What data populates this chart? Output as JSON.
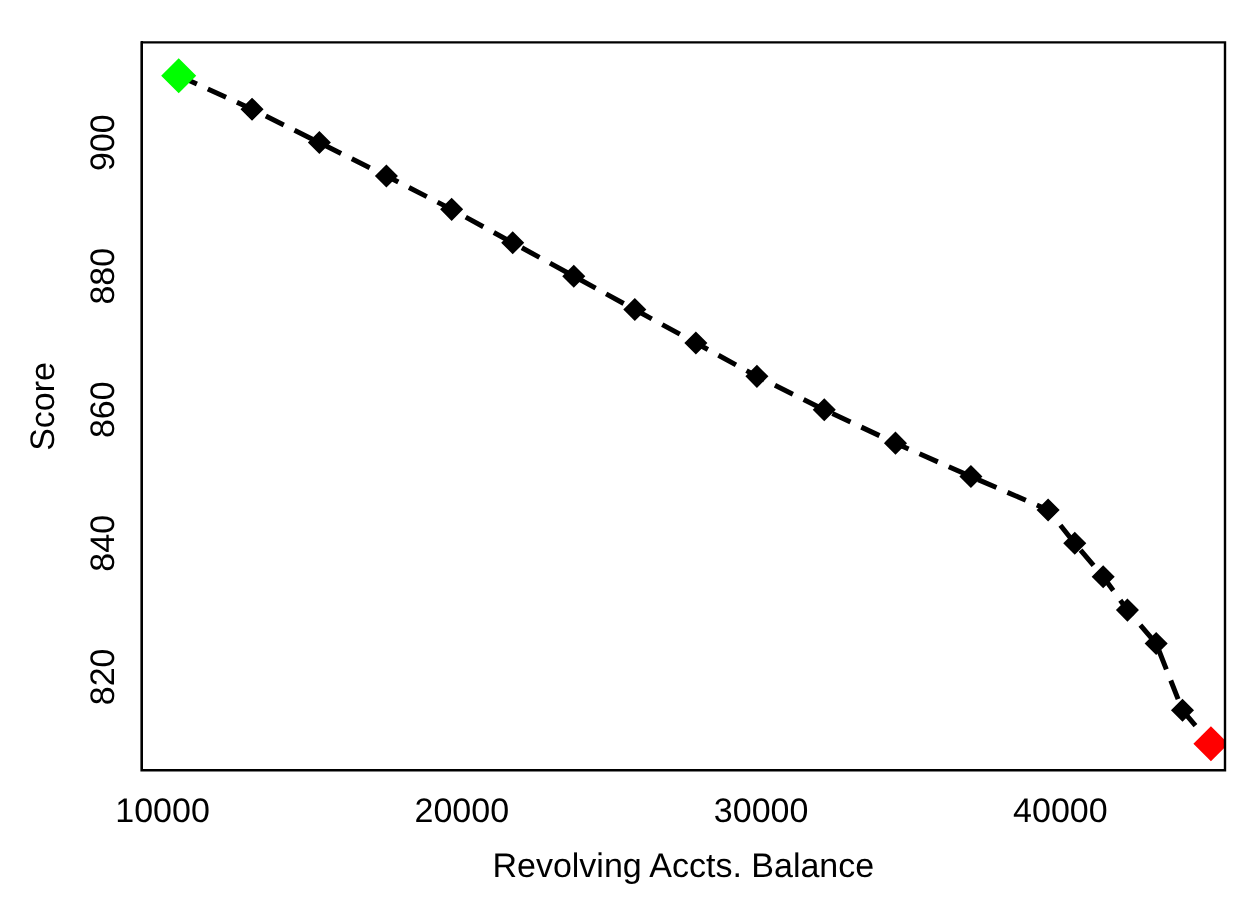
{
  "chart_data": {
    "type": "line",
    "xlabel": "Revolving Accts. Balance",
    "ylabel": "Score",
    "x": [
      10540,
      12990,
      15240,
      17480,
      19660,
      21700,
      23740,
      25780,
      27820,
      29860,
      32110,
      34490,
      37010,
      39590,
      40480,
      41430,
      42240,
      43200,
      44080,
      45030
    ],
    "series": [
      {
        "color": "#000000",
        "colors": [
          "#00ff00",
          "#000000",
          "#000000",
          "#000000",
          "#000000",
          "#000000",
          "#000000",
          "#000000",
          "#000000",
          "#000000",
          "#000000",
          "#000000",
          "#000000",
          "#000000",
          "#000000",
          "#000000",
          "#000000",
          "#000000",
          "#000000",
          "#ff0000"
        ],
        "values": [
          910,
          905,
          900,
          895,
          890,
          885,
          880,
          875,
          870,
          865,
          860,
          855,
          850,
          845,
          840,
          835,
          830,
          825,
          815,
          810
        ]
      }
    ],
    "xlim": [
      9300,
      45500
    ],
    "xticks": [
      10000,
      20000,
      30000,
      40000
    ],
    "ylim": [
      806,
      915
    ],
    "yticks": [
      820,
      840,
      860,
      880,
      900
    ],
    "grid": false,
    "legend": false,
    "marker": "diamond",
    "line_style": "dashed"
  }
}
